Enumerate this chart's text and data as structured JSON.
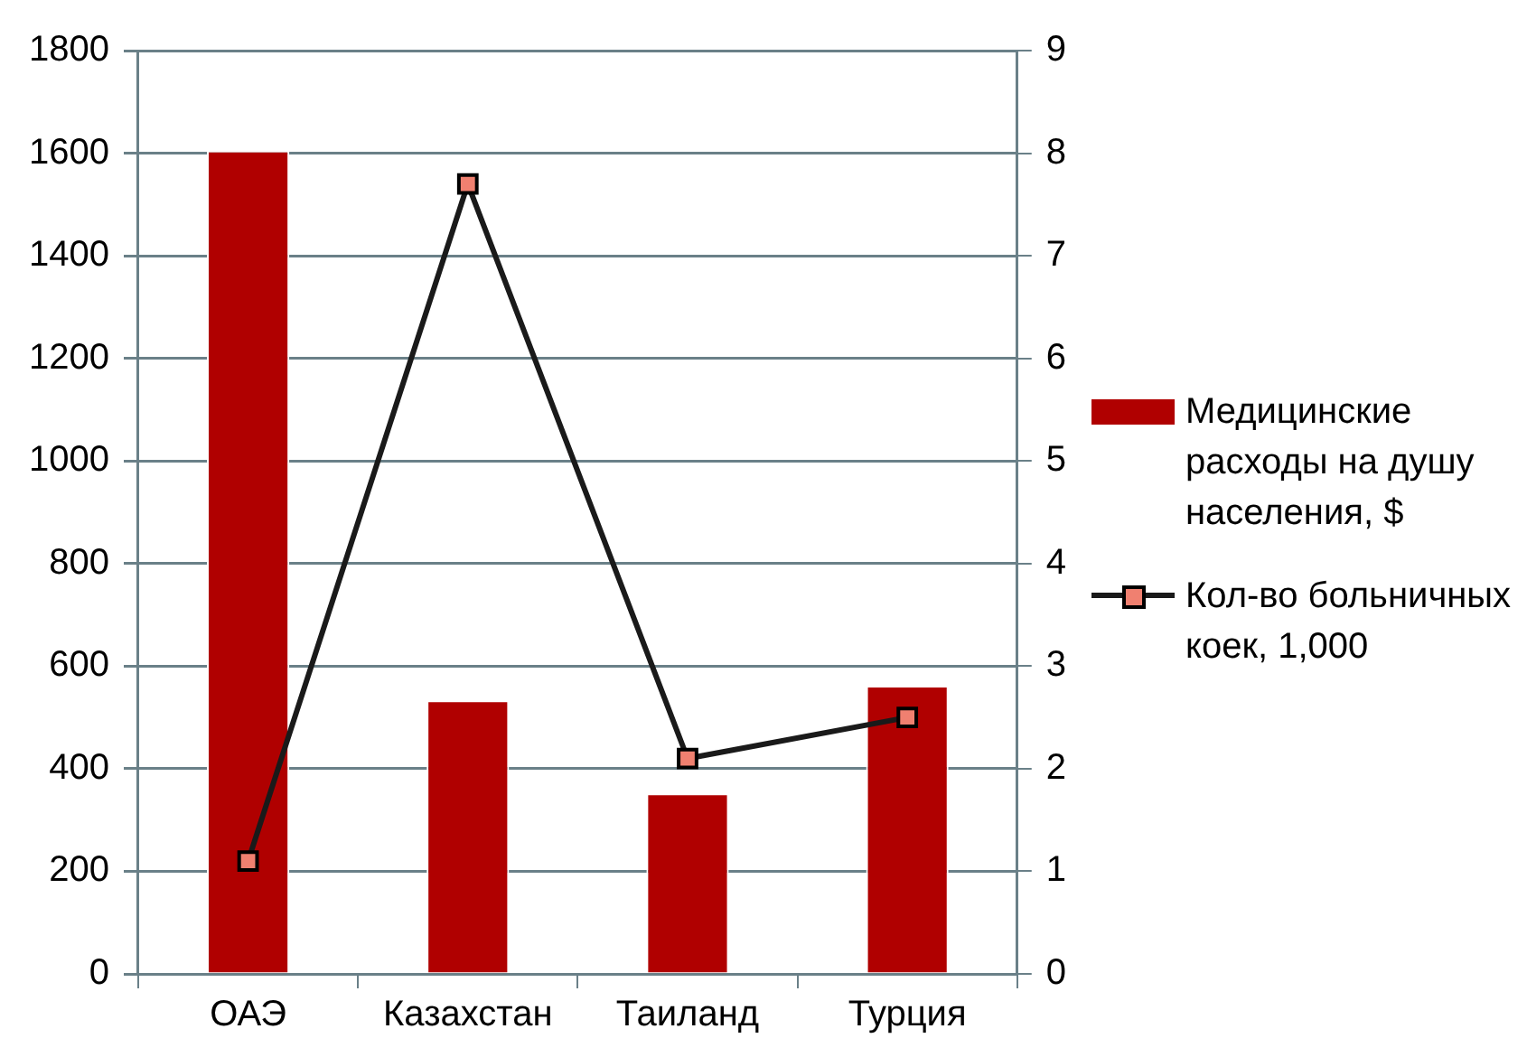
{
  "chart_data": {
    "type": "bar",
    "categories": [
      "ОАЭ",
      "Казахстан",
      "Таиланд",
      "Турция"
    ],
    "series": [
      {
        "name": "Медицинские расходы на душу населения, $",
        "color": "#b00000",
        "values": [
          1605,
          533,
          352,
          562
        ]
      },
      {
        "name": "Кол-во больничных коек, 1,000",
        "type": "line",
        "axis": "y2",
        "color": "#1a1a1a",
        "marker": "square",
        "values": [
          1.1,
          7.7,
          2.1,
          2.5
        ]
      }
    ],
    "ylim": [
      0,
      1800
    ],
    "yticks": [
      0,
      200,
      400,
      600,
      800,
      1000,
      1200,
      1400,
      1600,
      1800
    ],
    "y2lim": [
      0,
      9
    ],
    "y2ticks": [
      0,
      1,
      2,
      3,
      4,
      5,
      6,
      7,
      8,
      9
    ],
    "grid": "y",
    "legend": "right"
  }
}
